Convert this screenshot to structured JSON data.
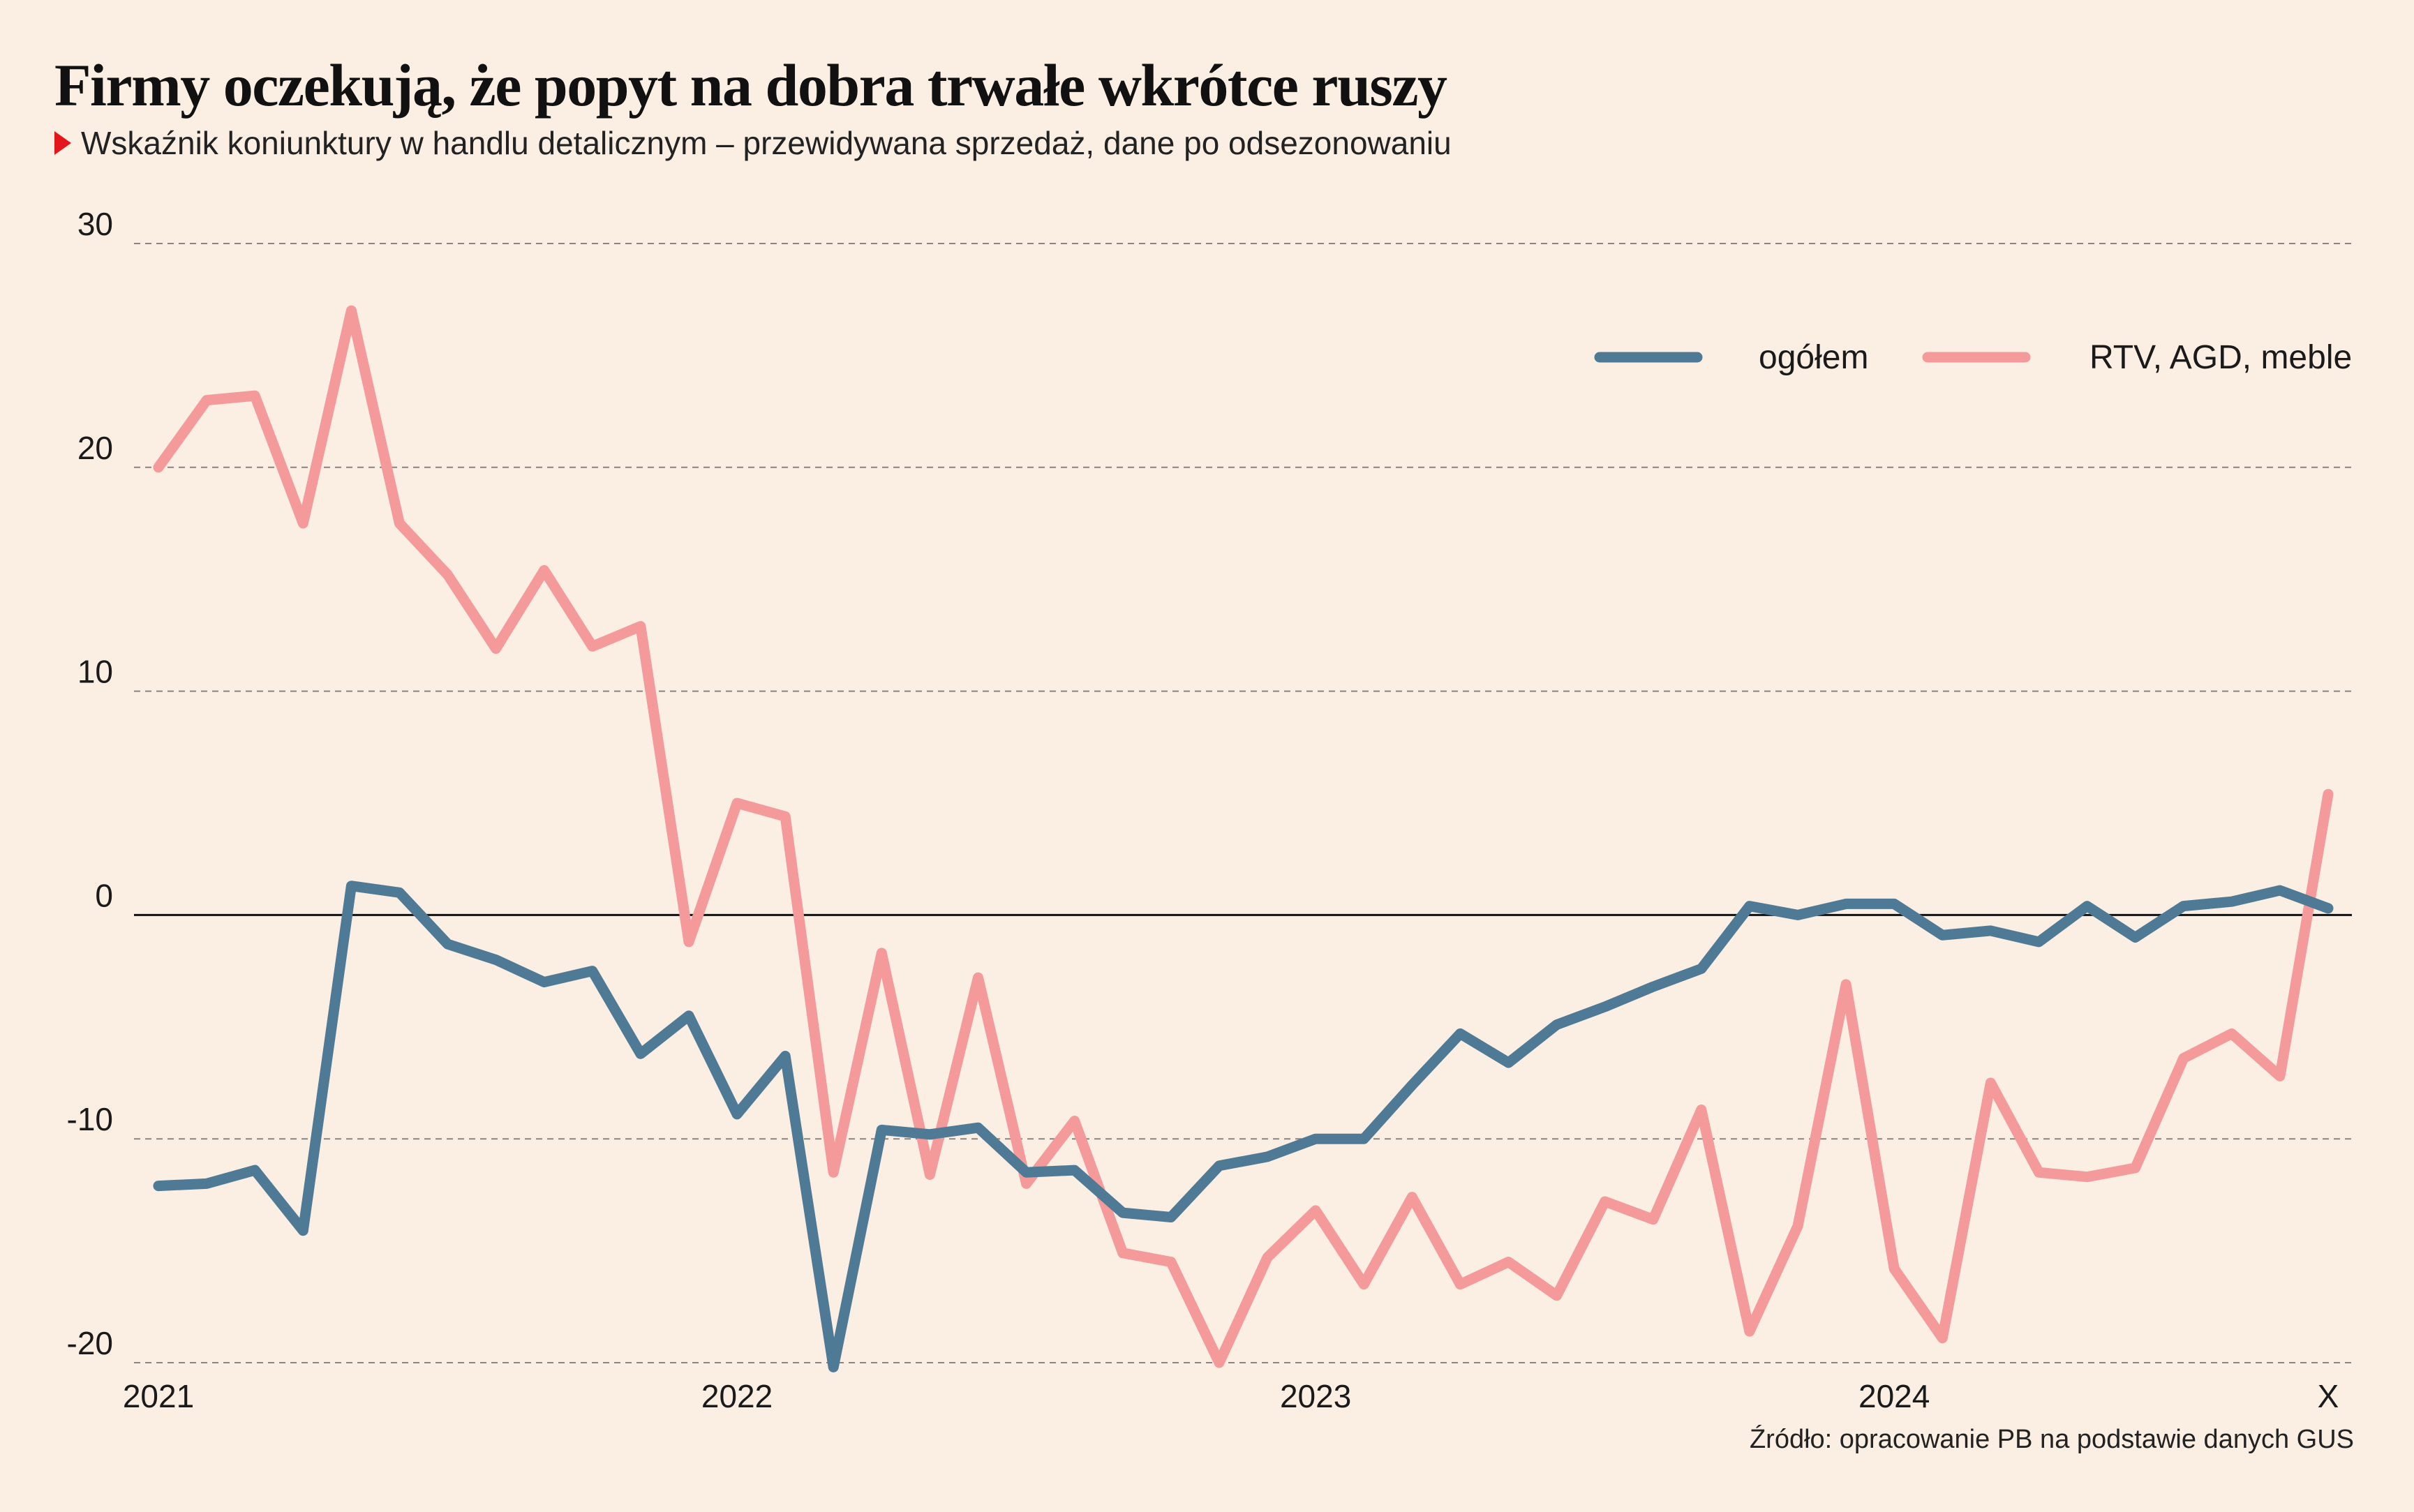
{
  "title": "Firmy oczekują, że popyt na dobra trwałe wkrótce ruszy",
  "subtitle": "Wskaźnik koniunktury w handlu detalicznym – przewidywana sprzedaż, dane po odsezonowaniu",
  "source": "Źródło: opracowanie PB na podstawie danych GUS",
  "colors": {
    "background": "#fbeee2",
    "ogolem": "#4f7a96",
    "rtv": "#f49a9b",
    "marker": "#e3161b"
  },
  "chart_data": {
    "type": "line",
    "title": "Firmy oczekują, że popyt na dobra trwałe wkrótce ruszy",
    "subtitle": "Wskaźnik koniunktury w handlu detalicznym – przewidywana sprzedaż, dane po odsezonowaniu",
    "xlabel": "",
    "ylabel": "",
    "ylim": [
      -20,
      30
    ],
    "yticks": [
      "30",
      "20",
      "10",
      "0",
      "-10",
      "-20"
    ],
    "ytick_values": [
      30,
      20,
      10,
      0,
      -10,
      -20
    ],
    "x_labels": [
      {
        "index": 0,
        "label": "2021"
      },
      {
        "index": 12,
        "label": "2022"
      },
      {
        "index": 24,
        "label": "2023"
      },
      {
        "index": 36,
        "label": "2024"
      },
      {
        "index": 45,
        "label": "X"
      }
    ],
    "grid": "horizontal dashed",
    "legend_position": "top-right",
    "series": [
      {
        "name": "ogółem",
        "color": "#4f7a96",
        "values": [
          -12.1,
          -12.0,
          -11.4,
          -14.1,
          1.3,
          1.0,
          -1.3,
          -2.0,
          -3.0,
          -2.5,
          -6.2,
          -4.5,
          -8.9,
          -6.3,
          -20.2,
          -9.6,
          -9.8,
          -9.5,
          -11.5,
          -11.4,
          -13.3,
          -13.5,
          -11.2,
          -10.8,
          -10.0,
          -10.0,
          -7.6,
          -5.3,
          -6.6,
          -4.9,
          -4.1,
          -3.2,
          -2.4,
          0.4,
          0.0,
          0.5,
          0.5,
          -0.9,
          -0.7,
          -1.2,
          0.4,
          -1.0,
          0.4,
          0.6,
          1.1,
          0.3
        ]
      },
      {
        "name": "RTV, AGD, meble",
        "color": "#f49a9b",
        "values": [
          20.0,
          23.0,
          23.2,
          17.5,
          27.0,
          17.5,
          15.2,
          11.9,
          15.4,
          12.0,
          12.9,
          -1.2,
          5.0,
          4.4,
          -11.5,
          -1.7,
          -11.6,
          -2.8,
          -12.0,
          -9.2,
          -15.1,
          -15.5,
          -20.0,
          -15.3,
          -13.2,
          -16.5,
          -12.6,
          -16.5,
          -15.5,
          -17.0,
          -12.8,
          -13.6,
          -8.7,
          -18.6,
          -13.9,
          -3.1,
          -15.8,
          -18.9,
          -7.5,
          -11.5,
          -11.7,
          -11.3,
          -6.4,
          -5.3,
          -7.2,
          5.4
        ]
      }
    ]
  }
}
